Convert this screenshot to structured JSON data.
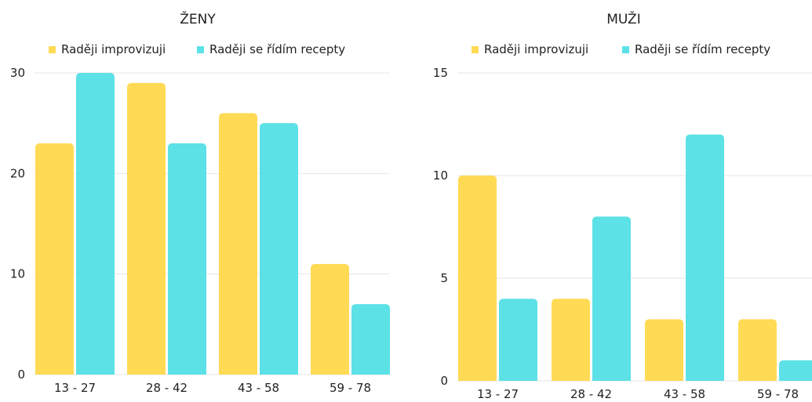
{
  "colors": {
    "improvise": "#FFDA55",
    "recipes": "#5CE1E6",
    "grid": "#e6e6e6",
    "text": "#222222"
  },
  "chart_data": [
    {
      "type": "bar",
      "title": "ŽENY",
      "categories": [
        "13 - 27",
        "28 - 42",
        "43 - 58",
        "59 - 78"
      ],
      "series": [
        {
          "name": "Raději improvizuji",
          "values": [
            23,
            29,
            26,
            11
          ]
        },
        {
          "name": "Raději se řídím recepty",
          "values": [
            30,
            23,
            25,
            7
          ]
        }
      ],
      "yticks": [
        "0",
        "10",
        "20",
        "30"
      ],
      "ylim": [
        0,
        30
      ],
      "legend": "top",
      "grid": true
    },
    {
      "type": "bar",
      "title": "MUŽI",
      "categories": [
        "13 - 27",
        "28 - 42",
        "43 - 58",
        "59 - 78"
      ],
      "series": [
        {
          "name": "Raději improvizuji",
          "values": [
            10,
            4,
            3,
            3
          ]
        },
        {
          "name": "Raději se řídím recepty",
          "values": [
            4,
            8,
            12,
            1
          ]
        }
      ],
      "yticks": [
        "0",
        "5",
        "10",
        "15"
      ],
      "ylim": [
        0,
        15
      ],
      "legend": "top",
      "grid": true
    }
  ]
}
